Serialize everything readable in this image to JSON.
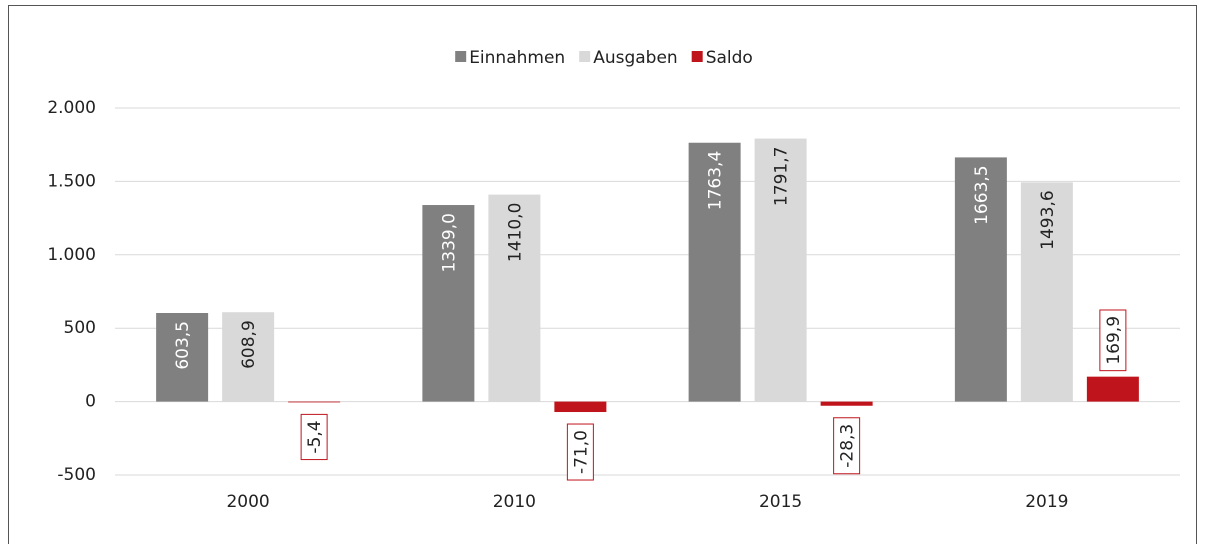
{
  "chart_data": {
    "type": "bar",
    "categories": [
      "2000",
      "2010",
      "2015",
      "2019"
    ],
    "series": [
      {
        "name": "Einnahmen",
        "color": "#808080",
        "values": [
          603.5,
          1339.0,
          1763.4,
          1663.5
        ],
        "value_labels": [
          "603,5",
          "1339,0",
          "1763,4",
          "1663,5"
        ]
      },
      {
        "name": "Ausgaben",
        "color": "#d9d9d9",
        "values": [
          608.9,
          1410.0,
          1791.7,
          1493.6
        ],
        "value_labels": [
          "608,9",
          "1410,0",
          "1791,7",
          "1493,6"
        ]
      },
      {
        "name": "Saldo",
        "color": "#c0141c",
        "values": [
          -5.4,
          -71.0,
          -28.3,
          169.9
        ],
        "value_labels": [
          "-5,4",
          "-71,0",
          "-28,3",
          "169,9"
        ]
      }
    ],
    "ylim": [
      -500,
      2000
    ],
    "yticks": [
      {
        "value": -500,
        "label": "-500"
      },
      0,
      500,
      {
        "value": 1000,
        "label": "1.000"
      },
      {
        "value": 1500,
        "label": "1.500"
      },
      {
        "value": 2000,
        "label": "2.000"
      }
    ],
    "grid": true,
    "legend": "top"
  }
}
